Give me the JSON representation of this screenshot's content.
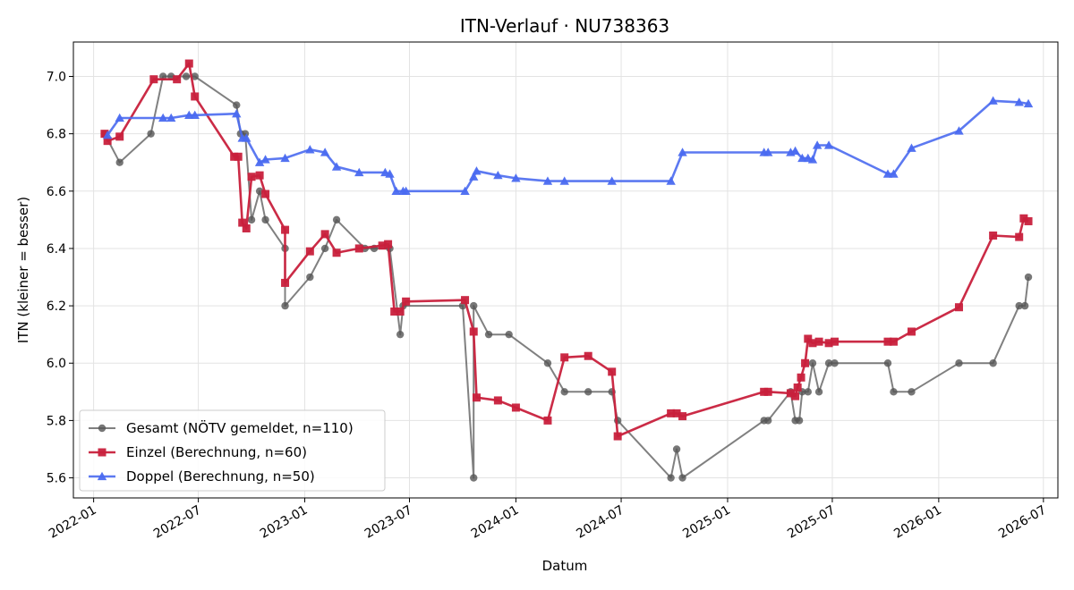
{
  "chart_data": {
    "type": "line",
    "title": "ITN-Verlauf · NU738363",
    "xlabel": "Datum",
    "ylabel": "ITN  (kleiner = besser)",
    "x_type": "date",
    "xlim": [
      "2021-11-27",
      "2026-07-26"
    ],
    "ylim": [
      5.53,
      7.12
    ],
    "x_ticks": [
      "2022-01-01",
      "2022-07-01",
      "2023-01-01",
      "2023-07-01",
      "2024-01-01",
      "2024-07-01",
      "2025-01-01",
      "2025-07-01",
      "2026-01-01",
      "2026-07-01"
    ],
    "x_tick_labels": [
      "2022-01",
      "2022-07",
      "2023-01",
      "2023-07",
      "2024-01",
      "2024-07",
      "2025-01",
      "2025-07",
      "2026-01",
      "2026-07"
    ],
    "y_ticks": [
      5.6,
      5.8,
      6.0,
      6.2,
      6.4,
      6.6,
      6.8,
      7.0
    ],
    "y_tick_labels": [
      "5.6",
      "5.8",
      "6.0",
      "6.2",
      "6.4",
      "6.6",
      "6.8",
      "7.0"
    ],
    "grid": true,
    "legend_position": "lower-left",
    "series": [
      {
        "name": "Gesamt (NÖTV gemeldet, n=110)",
        "color": "#555555",
        "marker": "circle",
        "points": [
          [
            "2022-01-20",
            6.8
          ],
          [
            "2022-02-15",
            6.7
          ],
          [
            "2022-04-10",
            6.8
          ],
          [
            "2022-05-01",
            7.0
          ],
          [
            "2022-05-15",
            7.0
          ],
          [
            "2022-06-10",
            7.0
          ],
          [
            "2022-06-25",
            7.0
          ],
          [
            "2022-09-05",
            6.9
          ],
          [
            "2022-09-12",
            6.8
          ],
          [
            "2022-09-20",
            6.8
          ],
          [
            "2022-10-01",
            6.5
          ],
          [
            "2022-10-15",
            6.6
          ],
          [
            "2022-10-25",
            6.5
          ],
          [
            "2022-11-28",
            6.4
          ],
          [
            "2022-11-28",
            6.2
          ],
          [
            "2023-01-10",
            6.3
          ],
          [
            "2023-02-05",
            6.4
          ],
          [
            "2023-02-25",
            6.5
          ],
          [
            "2023-04-15",
            6.4
          ],
          [
            "2023-05-01",
            6.4
          ],
          [
            "2023-05-28",
            6.4
          ],
          [
            "2023-06-15",
            6.1
          ],
          [
            "2023-06-20",
            6.2
          ],
          [
            "2023-10-01",
            6.2
          ],
          [
            "2023-10-20",
            5.6
          ],
          [
            "2023-10-20",
            6.2
          ],
          [
            "2023-11-15",
            6.1
          ],
          [
            "2023-12-20",
            6.1
          ],
          [
            "2024-02-25",
            6.0
          ],
          [
            "2024-03-25",
            5.9
          ],
          [
            "2024-05-05",
            5.9
          ],
          [
            "2024-06-15",
            5.9
          ],
          [
            "2024-06-25",
            5.8
          ],
          [
            "2024-09-25",
            5.6
          ],
          [
            "2024-10-05",
            5.7
          ],
          [
            "2024-10-15",
            5.6
          ],
          [
            "2025-03-05",
            5.8
          ],
          [
            "2025-03-12",
            5.8
          ],
          [
            "2025-04-20",
            5.9
          ],
          [
            "2025-04-28",
            5.8
          ],
          [
            "2025-05-05",
            5.8
          ],
          [
            "2025-05-10",
            5.9
          ],
          [
            "2025-05-20",
            5.9
          ],
          [
            "2025-05-28",
            6.0
          ],
          [
            "2025-06-08",
            5.9
          ],
          [
            "2025-06-25",
            6.0
          ],
          [
            "2025-07-05",
            6.0
          ],
          [
            "2025-10-05",
            6.0
          ],
          [
            "2025-10-15",
            5.9
          ],
          [
            "2025-11-15",
            5.9
          ],
          [
            "2026-02-05",
            6.0
          ],
          [
            "2026-04-05",
            6.0
          ],
          [
            "2026-05-20",
            6.2
          ],
          [
            "2026-05-30",
            6.2
          ],
          [
            "2026-06-05",
            6.3
          ]
        ]
      },
      {
        "name": "Einzel (Berechnung, n=60)",
        "color": "#c8203c",
        "marker": "square",
        "points": [
          [
            "2022-01-20",
            6.8
          ],
          [
            "2022-01-25",
            6.775
          ],
          [
            "2022-02-15",
            6.79
          ],
          [
            "2022-04-15",
            6.99
          ],
          [
            "2022-05-25",
            6.99
          ],
          [
            "2022-06-15",
            7.045
          ],
          [
            "2022-06-25",
            6.93
          ],
          [
            "2022-09-01",
            6.72
          ],
          [
            "2022-09-08",
            6.72
          ],
          [
            "2022-09-15",
            6.49
          ],
          [
            "2022-09-22",
            6.47
          ],
          [
            "2022-10-01",
            6.65
          ],
          [
            "2022-10-15",
            6.655
          ],
          [
            "2022-10-25",
            6.59
          ],
          [
            "2022-11-28",
            6.465
          ],
          [
            "2022-11-28",
            6.28
          ],
          [
            "2023-01-10",
            6.39
          ],
          [
            "2023-02-05",
            6.45
          ],
          [
            "2023-02-25",
            6.385
          ],
          [
            "2023-04-05",
            6.4
          ],
          [
            "2023-05-15",
            6.41
          ],
          [
            "2023-05-25",
            6.415
          ],
          [
            "2023-06-05",
            6.18
          ],
          [
            "2023-06-15",
            6.18
          ],
          [
            "2023-06-25",
            6.215
          ],
          [
            "2023-10-05",
            6.22
          ],
          [
            "2023-10-20",
            6.11
          ],
          [
            "2023-10-25",
            5.88
          ],
          [
            "2023-12-01",
            5.87
          ],
          [
            "2024-01-01",
            5.845
          ],
          [
            "2024-02-25",
            5.8
          ],
          [
            "2024-03-25",
            6.02
          ],
          [
            "2024-05-05",
            6.025
          ],
          [
            "2024-06-15",
            5.97
          ],
          [
            "2024-06-25",
            5.745
          ],
          [
            "2024-09-25",
            5.825
          ],
          [
            "2024-10-05",
            5.825
          ],
          [
            "2024-10-15",
            5.815
          ],
          [
            "2025-03-05",
            5.9
          ],
          [
            "2025-03-12",
            5.9
          ],
          [
            "2025-04-20",
            5.895
          ],
          [
            "2025-04-28",
            5.885
          ],
          [
            "2025-05-02",
            5.915
          ],
          [
            "2025-05-08",
            5.95
          ],
          [
            "2025-05-15",
            6.0
          ],
          [
            "2025-05-20",
            6.085
          ],
          [
            "2025-05-28",
            6.07
          ],
          [
            "2025-06-08",
            6.075
          ],
          [
            "2025-06-25",
            6.07
          ],
          [
            "2025-07-05",
            6.075
          ],
          [
            "2025-10-05",
            6.075
          ],
          [
            "2025-10-15",
            6.075
          ],
          [
            "2025-11-15",
            6.11
          ],
          [
            "2026-02-05",
            6.195
          ],
          [
            "2026-04-05",
            6.445
          ],
          [
            "2026-05-20",
            6.44
          ],
          [
            "2026-05-28",
            6.505
          ],
          [
            "2026-06-05",
            6.495
          ]
        ]
      },
      {
        "name": "Doppel (Berechnung, n=50)",
        "color": "#4a6af0",
        "marker": "triangle",
        "points": [
          [
            "2022-01-25",
            6.795
          ],
          [
            "2022-02-15",
            6.855
          ],
          [
            "2022-05-01",
            6.855
          ],
          [
            "2022-05-15",
            6.855
          ],
          [
            "2022-06-15",
            6.865
          ],
          [
            "2022-06-25",
            6.865
          ],
          [
            "2022-09-05",
            6.87
          ],
          [
            "2022-09-15",
            6.785
          ],
          [
            "2022-09-22",
            6.785
          ],
          [
            "2022-10-15",
            6.7
          ],
          [
            "2022-10-25",
            6.71
          ],
          [
            "2022-11-28",
            6.715
          ],
          [
            "2023-01-10",
            6.745
          ],
          [
            "2023-02-05",
            6.735
          ],
          [
            "2023-02-25",
            6.685
          ],
          [
            "2023-04-05",
            6.665
          ],
          [
            "2023-05-20",
            6.665
          ],
          [
            "2023-05-28",
            6.66
          ],
          [
            "2023-06-08",
            6.6
          ],
          [
            "2023-06-20",
            6.6
          ],
          [
            "2023-06-25",
            6.6
          ],
          [
            "2023-10-05",
            6.6
          ],
          [
            "2023-10-20",
            6.65
          ],
          [
            "2023-10-25",
            6.67
          ],
          [
            "2023-12-01",
            6.655
          ],
          [
            "2024-01-01",
            6.645
          ],
          [
            "2024-02-25",
            6.635
          ],
          [
            "2024-03-25",
            6.635
          ],
          [
            "2024-06-15",
            6.635
          ],
          [
            "2024-09-25",
            6.635
          ],
          [
            "2024-10-15",
            6.735
          ],
          [
            "2025-03-05",
            6.735
          ],
          [
            "2025-03-12",
            6.735
          ],
          [
            "2025-04-20",
            6.735
          ],
          [
            "2025-04-28",
            6.74
          ],
          [
            "2025-05-10",
            6.715
          ],
          [
            "2025-05-20",
            6.715
          ],
          [
            "2025-05-28",
            6.71
          ],
          [
            "2025-06-05",
            6.76
          ],
          [
            "2025-06-25",
            6.76
          ],
          [
            "2025-10-05",
            6.66
          ],
          [
            "2025-10-15",
            6.66
          ],
          [
            "2025-11-15",
            6.75
          ],
          [
            "2026-02-05",
            6.81
          ],
          [
            "2026-04-05",
            6.915
          ],
          [
            "2026-05-20",
            6.91
          ],
          [
            "2026-06-05",
            6.905
          ]
        ]
      }
    ]
  }
}
